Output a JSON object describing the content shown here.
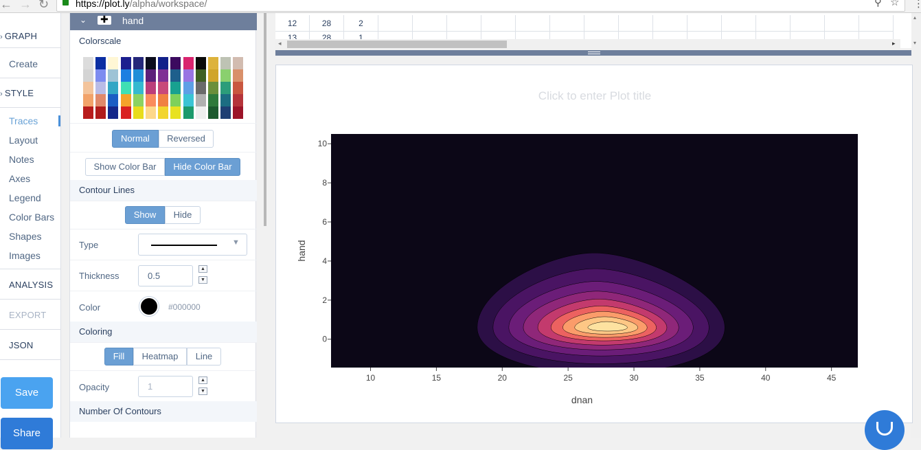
{
  "browser": {
    "url_host": "https://plot.ly",
    "url_path": "/alpha/workspace/"
  },
  "leftnav": {
    "graph_label": "GRAPH",
    "create_label": "Create",
    "style_label": "STYLE",
    "style_items": [
      "Traces",
      "Layout",
      "Notes",
      "Axes",
      "Legend",
      "Color Bars",
      "Shapes",
      "Images"
    ],
    "active_item": "Traces",
    "analysis_label": "ANALYSIS",
    "export_label": "EXPORT",
    "json_label": "JSON",
    "save_label": "Save",
    "share_label": "Share"
  },
  "panel": {
    "trace_name": "hand",
    "colorscale_title": "Colorscale",
    "colorscale_columns": [
      [
        "#dcdcdc",
        "#d4d4d4",
        "#f3c49c",
        "#f2a36a",
        "#b81c1c"
      ],
      [
        "#0c2fa3",
        "#7d8cf0",
        "#b9bce6",
        "#e0896b",
        "#b01b1b"
      ],
      [
        "#fff7d5",
        "#9ec3d6",
        "#33a6c5",
        "#1b5dc4",
        "#14278a"
      ],
      [
        "#1c1f8f",
        "#1c7fe1",
        "#3fe0b4",
        "#f5a22a",
        "#d92020"
      ],
      [
        "#25277a",
        "#1f8fd8",
        "#35b9d0",
        "#8cd262",
        "#e8dc1c"
      ],
      [
        "#0b0c1c",
        "#5c1e7a",
        "#bc3d7a",
        "#fa8c5c",
        "#fdd88a"
      ],
      [
        "#122089",
        "#7f2f94",
        "#c8497a",
        "#f08142",
        "#f2d52e"
      ],
      [
        "#3c0b5f",
        "#1e5f8c",
        "#18a190",
        "#7ed15b",
        "#e8e221"
      ],
      [
        "#d9246f",
        "#9974e3",
        "#5ea0e6",
        "#3bc4d4",
        "#1c9a6c"
      ],
      [
        "#0a0a0a",
        "#3f5f23",
        "#6a6a6a",
        "#b0b0b0",
        "#efefef"
      ],
      [
        "#ddb33c",
        "#d0a52a",
        "#6b8f3a",
        "#2f7a3b",
        "#1c5a2e"
      ],
      [
        "#bec3b4",
        "#8ad06e",
        "#2c9d7a",
        "#1c6d82",
        "#1e3f73"
      ],
      [
        "#d2bcb0",
        "#d9906a",
        "#c9573f",
        "#b5343a",
        "#9c1428"
      ]
    ],
    "normal_label": "Normal",
    "reversed_label": "Reversed",
    "show_colorbar_label": "Show Color Bar",
    "hide_colorbar_label": "Hide Color Bar",
    "contour_lines_title": "Contour Lines",
    "show_label": "Show",
    "hide_label": "Hide",
    "type_label": "Type",
    "thickness_label": "Thickness",
    "thickness_value": "0.5",
    "color_label": "Color",
    "color_value": "#000000",
    "coloring_title": "Coloring",
    "fill_label": "Fill",
    "heatmap_label": "Heatmap",
    "line_label": "Line",
    "opacity_label": "Opacity",
    "opacity_value": "1",
    "number_of_contours_title": "Number Of Contours"
  },
  "grid": {
    "rows": [
      [
        "12",
        "28",
        "2"
      ],
      [
        "13",
        "28",
        "1"
      ]
    ]
  },
  "plot": {
    "title_placeholder": "Click to enter Plot title"
  },
  "chart_data": {
    "type": "contour",
    "title": "",
    "xlabel": "dnan",
    "ylabel": "hand",
    "xlim": [
      7,
      47
    ],
    "ylim": [
      -1.45,
      10.5
    ],
    "x_ticks": [
      "10",
      "15",
      "20",
      "25",
      "30",
      "35",
      "40",
      "45"
    ],
    "y_ticks": [
      "0",
      "2",
      "4",
      "6",
      "8",
      "10"
    ],
    "background_color": "#0c0717",
    "contour_levels": [
      {
        "cx": 27.5,
        "cy": 0.6,
        "rx": 9.4,
        "ry": 3.8,
        "color": "#2c0f46"
      },
      {
        "cx": 27.5,
        "cy": 0.6,
        "rx": 8.2,
        "ry": 3.0,
        "color": "#4a1463"
      },
      {
        "cx": 27.5,
        "cy": 0.6,
        "rx": 7.0,
        "ry": 2.35,
        "color": "#6b1d78"
      },
      {
        "cx": 27.5,
        "cy": 0.6,
        "rx": 5.9,
        "ry": 1.85,
        "color": "#8f2779"
      },
      {
        "cx": 27.6,
        "cy": 0.6,
        "rx": 4.9,
        "ry": 1.45,
        "color": "#c33a6d"
      },
      {
        "cx": 27.7,
        "cy": 0.6,
        "rx": 4.0,
        "ry": 1.1,
        "color": "#ec6260"
      },
      {
        "cx": 27.8,
        "cy": 0.6,
        "rx": 3.2,
        "ry": 0.82,
        "color": "#fb9c6a"
      },
      {
        "cx": 27.9,
        "cy": 0.6,
        "rx": 2.4,
        "ry": 0.55,
        "color": "#fdc785"
      },
      {
        "cx": 28.0,
        "cy": 0.6,
        "rx": 1.5,
        "ry": 0.3,
        "color": "#fde2a0"
      }
    ]
  }
}
